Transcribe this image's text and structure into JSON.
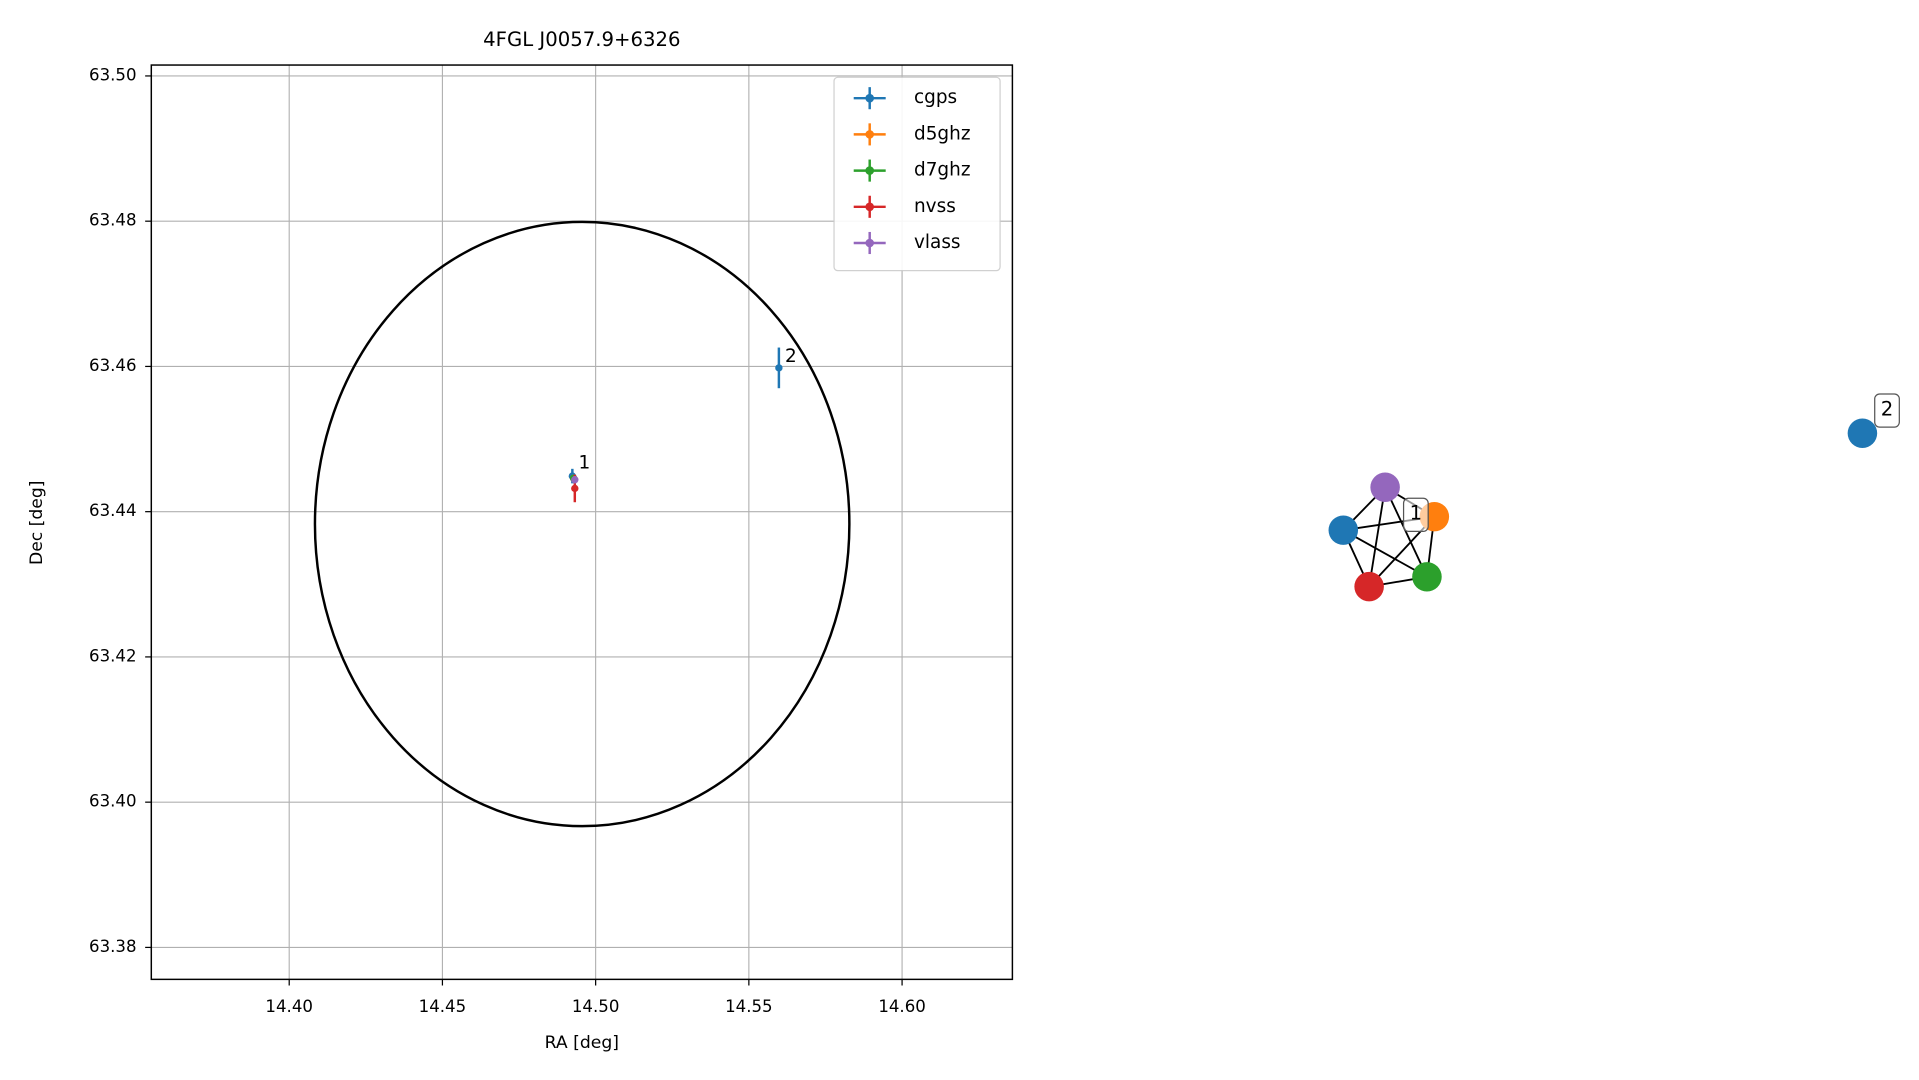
{
  "chart_data": {
    "type": "scatter",
    "title": "4FGL J0057.9+6326",
    "x_label": "RA [deg]",
    "y_label": "Dec [deg]",
    "xlim": [
      14.355,
      14.636
    ],
    "ylim": [
      63.3756,
      63.5015
    ],
    "xticks": [
      {
        "value": 14.4,
        "label": "14.40"
      },
      14.45,
      {
        "value": 14.5,
        "label": "14.50"
      },
      14.55,
      {
        "value": 14.6,
        "label": "14.60"
      }
    ],
    "yticks": [
      63.38,
      {
        "value": 63.4,
        "label": "63.40"
      },
      63.42,
      63.44,
      63.46,
      63.48,
      {
        "value": 63.5,
        "label": "63.50"
      }
    ],
    "grid": true,
    "legend": "upper right",
    "series": [
      {
        "name": "cgps",
        "color": "#1f77b4",
        "x": [
          14.4924,
          14.5598
        ],
        "y": [
          63.4449,
          63.4598
        ],
        "yerr": [
          0.001,
          0.0028
        ]
      },
      {
        "name": "d5ghz",
        "color": "#ff7f0e",
        "x": [
          14.4928
        ],
        "y": [
          63.4446
        ],
        "yerr": [
          0.0004
        ]
      },
      {
        "name": "d7ghz",
        "color": "#2ca02c",
        "x": [
          14.4928
        ],
        "y": [
          63.4446
        ],
        "yerr": [
          0.0004
        ]
      },
      {
        "name": "nvss",
        "color": "#d62728",
        "x": [
          14.4932
        ],
        "y": [
          63.4432
        ],
        "yerr": [
          0.0019
        ]
      },
      {
        "name": "vlass",
        "color": "#9467bd",
        "x": [
          14.4932
        ],
        "y": [
          63.4444
        ],
        "yerr": [
          0.0005
        ]
      }
    ],
    "annotations": [
      {
        "text": "1",
        "x": 14.4944,
        "y": 63.4466
      },
      {
        "text": "2",
        "x": 14.5618,
        "y": 63.4613
      }
    ],
    "ellipse": {
      "center_x": 14.4956,
      "center_y": 63.4383,
      "width": 0.1744,
      "height": 0.0832,
      "color": "#000000"
    }
  },
  "network": {
    "nodes": [
      {
        "color": "#1f77b4"
      },
      {
        "color": "#9467bd"
      },
      {
        "color": "#ff7f0e"
      },
      {
        "color": "#2ca02c"
      },
      {
        "color": "#d62728"
      },
      {
        "color": "#1f77b4"
      }
    ],
    "groups": [
      {
        "label": "1",
        "nodes": [
          0,
          1,
          2,
          3,
          4
        ]
      },
      {
        "label": "2",
        "nodes": [
          5
        ]
      }
    ]
  }
}
